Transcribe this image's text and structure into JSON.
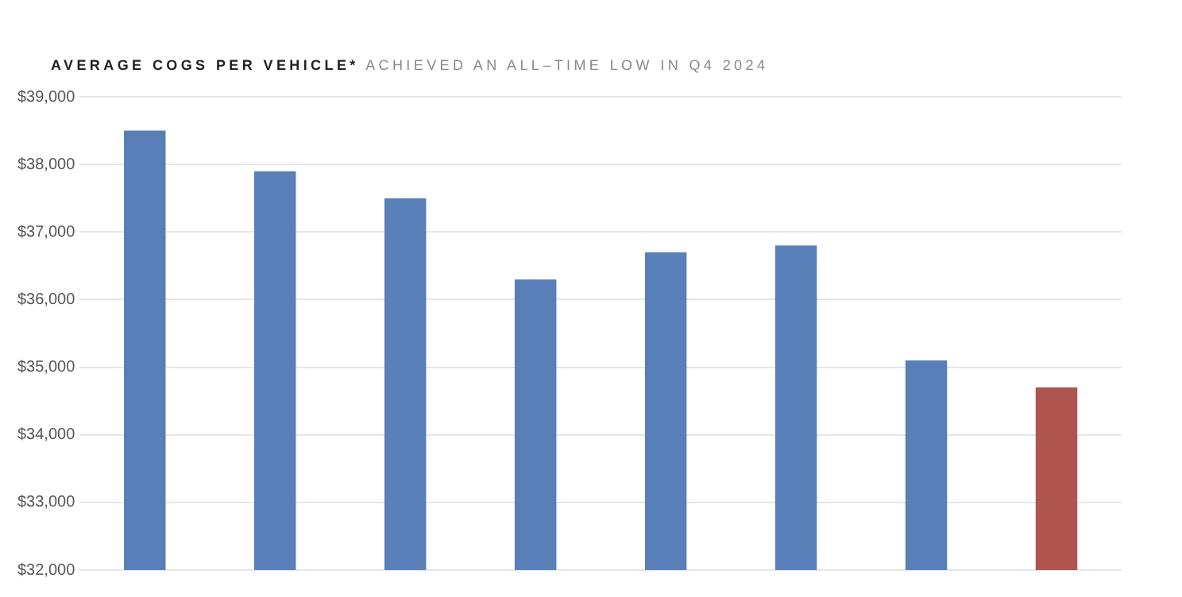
{
  "chart_data": {
    "type": "bar",
    "title": "AVERAGE COGS PER VEHICLE*",
    "subtitle": "ACHIEVED AN ALL–TIME LOW IN Q4 2024",
    "categories": [
      null,
      null,
      null,
      null,
      null,
      null,
      null,
      null
    ],
    "values": [
      38500,
      37900,
      37500,
      36300,
      36700,
      36800,
      35100,
      34700
    ],
    "colors": [
      "#587fb8",
      "#587fb8",
      "#587fb8",
      "#587fb8",
      "#587fb8",
      "#587fb8",
      "#587fb8",
      "#b0544f"
    ],
    "ylim": [
      32000,
      39000
    ],
    "yticks": [
      {
        "value": 32000,
        "label": "$32,000"
      },
      {
        "value": 33000,
        "label": "$33,000"
      },
      {
        "value": 34000,
        "label": "$34,000"
      },
      {
        "value": 35000,
        "label": "$35,000"
      },
      {
        "value": 36000,
        "label": "$36,000"
      },
      {
        "value": 37000,
        "label": "$37,000"
      },
      {
        "value": 38000,
        "label": "$38,000"
      },
      {
        "value": 39000,
        "label": "$39,000"
      }
    ],
    "grid": "y",
    "legend": false
  }
}
